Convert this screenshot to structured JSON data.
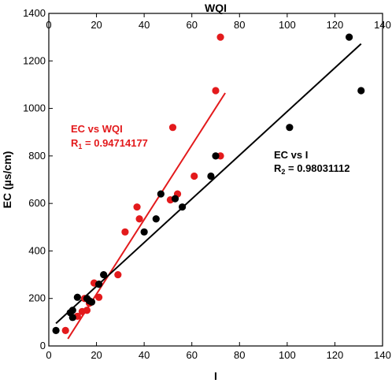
{
  "chart_data": {
    "type": "scatter",
    "title": "WQI",
    "xlabel": "I",
    "ylabel": "EC (µs/cm)",
    "x_bottom": {
      "range": [
        0,
        140
      ],
      "ticks": [
        "0",
        "20",
        "40",
        "60",
        "80",
        "100",
        "120",
        "140"
      ]
    },
    "x_top": {
      "range": [
        0,
        140
      ],
      "ticks": [
        "0",
        "20",
        "40",
        "60",
        "80",
        "100",
        "120",
        "140"
      ]
    },
    "y": {
      "range": [
        0,
        1400
      ],
      "ticks": [
        "0",
        "200",
        "400",
        "600",
        "800",
        "1000",
        "1200",
        "1400"
      ]
    },
    "grid": false,
    "series": [
      {
        "name": "EC vs WQI",
        "axis": "top",
        "color": "#e31a1c",
        "points": [
          [
            7,
            65
          ],
          [
            12,
            125
          ],
          [
            14,
            145
          ],
          [
            15,
            200
          ],
          [
            16,
            150
          ],
          [
            17,
            180
          ],
          [
            19,
            265
          ],
          [
            21,
            205
          ],
          [
            29,
            300
          ],
          [
            32,
            480
          ],
          [
            37,
            585
          ],
          [
            38,
            535
          ],
          [
            51,
            615
          ],
          [
            52,
            920
          ],
          [
            54,
            640
          ],
          [
            61,
            715
          ],
          [
            70,
            1075
          ],
          [
            72,
            1300
          ],
          [
            72,
            800
          ]
        ],
        "fit": {
          "x": [
            8,
            74
          ],
          "y": [
            30,
            1065
          ]
        },
        "label": "EC vs WQI",
        "r_label": "R",
        "r_sub": "1",
        "r_value": " = 0.94714177"
      },
      {
        "name": "EC vs I",
        "axis": "bottom",
        "color": "#000000",
        "points": [
          [
            3,
            65
          ],
          [
            9,
            140
          ],
          [
            10,
            150
          ],
          [
            10,
            120
          ],
          [
            12,
            205
          ],
          [
            16,
            200
          ],
          [
            17,
            190
          ],
          [
            18,
            185
          ],
          [
            21,
            260
          ],
          [
            23,
            300
          ],
          [
            40,
            480
          ],
          [
            45,
            535
          ],
          [
            47,
            640
          ],
          [
            53,
            620
          ],
          [
            56,
            585
          ],
          [
            68,
            715
          ],
          [
            70,
            800
          ],
          [
            101,
            920
          ],
          [
            126,
            1300
          ],
          [
            131,
            1075
          ]
        ],
        "fit": {
          "x": [
            3,
            131
          ],
          "y": [
            95,
            1272
          ]
        },
        "label": "EC vs I",
        "r_label": "R",
        "r_sub": "2",
        "r_value": " = 0.98031112"
      }
    ]
  }
}
